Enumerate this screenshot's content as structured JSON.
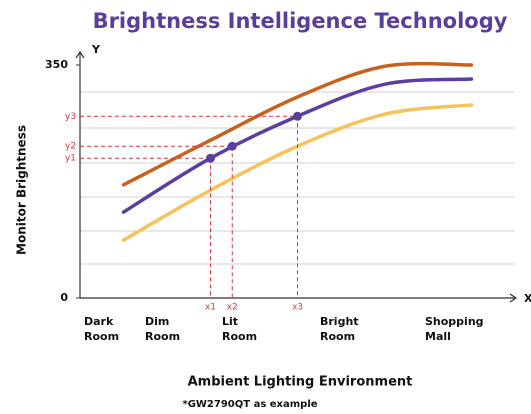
{
  "chart_data": {
    "type": "line",
    "title": "Brightness Intelligence Technology",
    "y_axis_title": "Monitor Brightness",
    "x_axis_title": "Ambient Lighting Environment",
    "footnote": "*GW2790QT as example",
    "x_axis_letter": "X",
    "y_axis_letter": "Y",
    "categories": [
      "Dark Room",
      "Dim Room",
      "Lit Room",
      "Bright Room",
      "Shopping Mall"
    ],
    "series": [
      {
        "color": "#c8601e",
        "values": [
          170,
          237,
          302,
          348,
          350
        ]
      },
      {
        "color": "#5b3f9e",
        "values": [
          129,
          210,
          273,
          321,
          329
        ]
      },
      {
        "color": "#f7c25c",
        "values": [
          87,
          162,
          228,
          276,
          290
        ]
      }
    ],
    "markers": [
      {
        "x_label": "x1",
        "y_label": "y1",
        "value": 210
      },
      {
        "x_label": "x2",
        "y_label": "y2",
        "value": 228
      },
      {
        "x_label": "x3",
        "y_label": "y3",
        "value": 273
      }
    ],
    "marker_color": "#d9363e",
    "ylim": [
      0,
      350
    ],
    "yticks": [
      0,
      350
    ]
  }
}
